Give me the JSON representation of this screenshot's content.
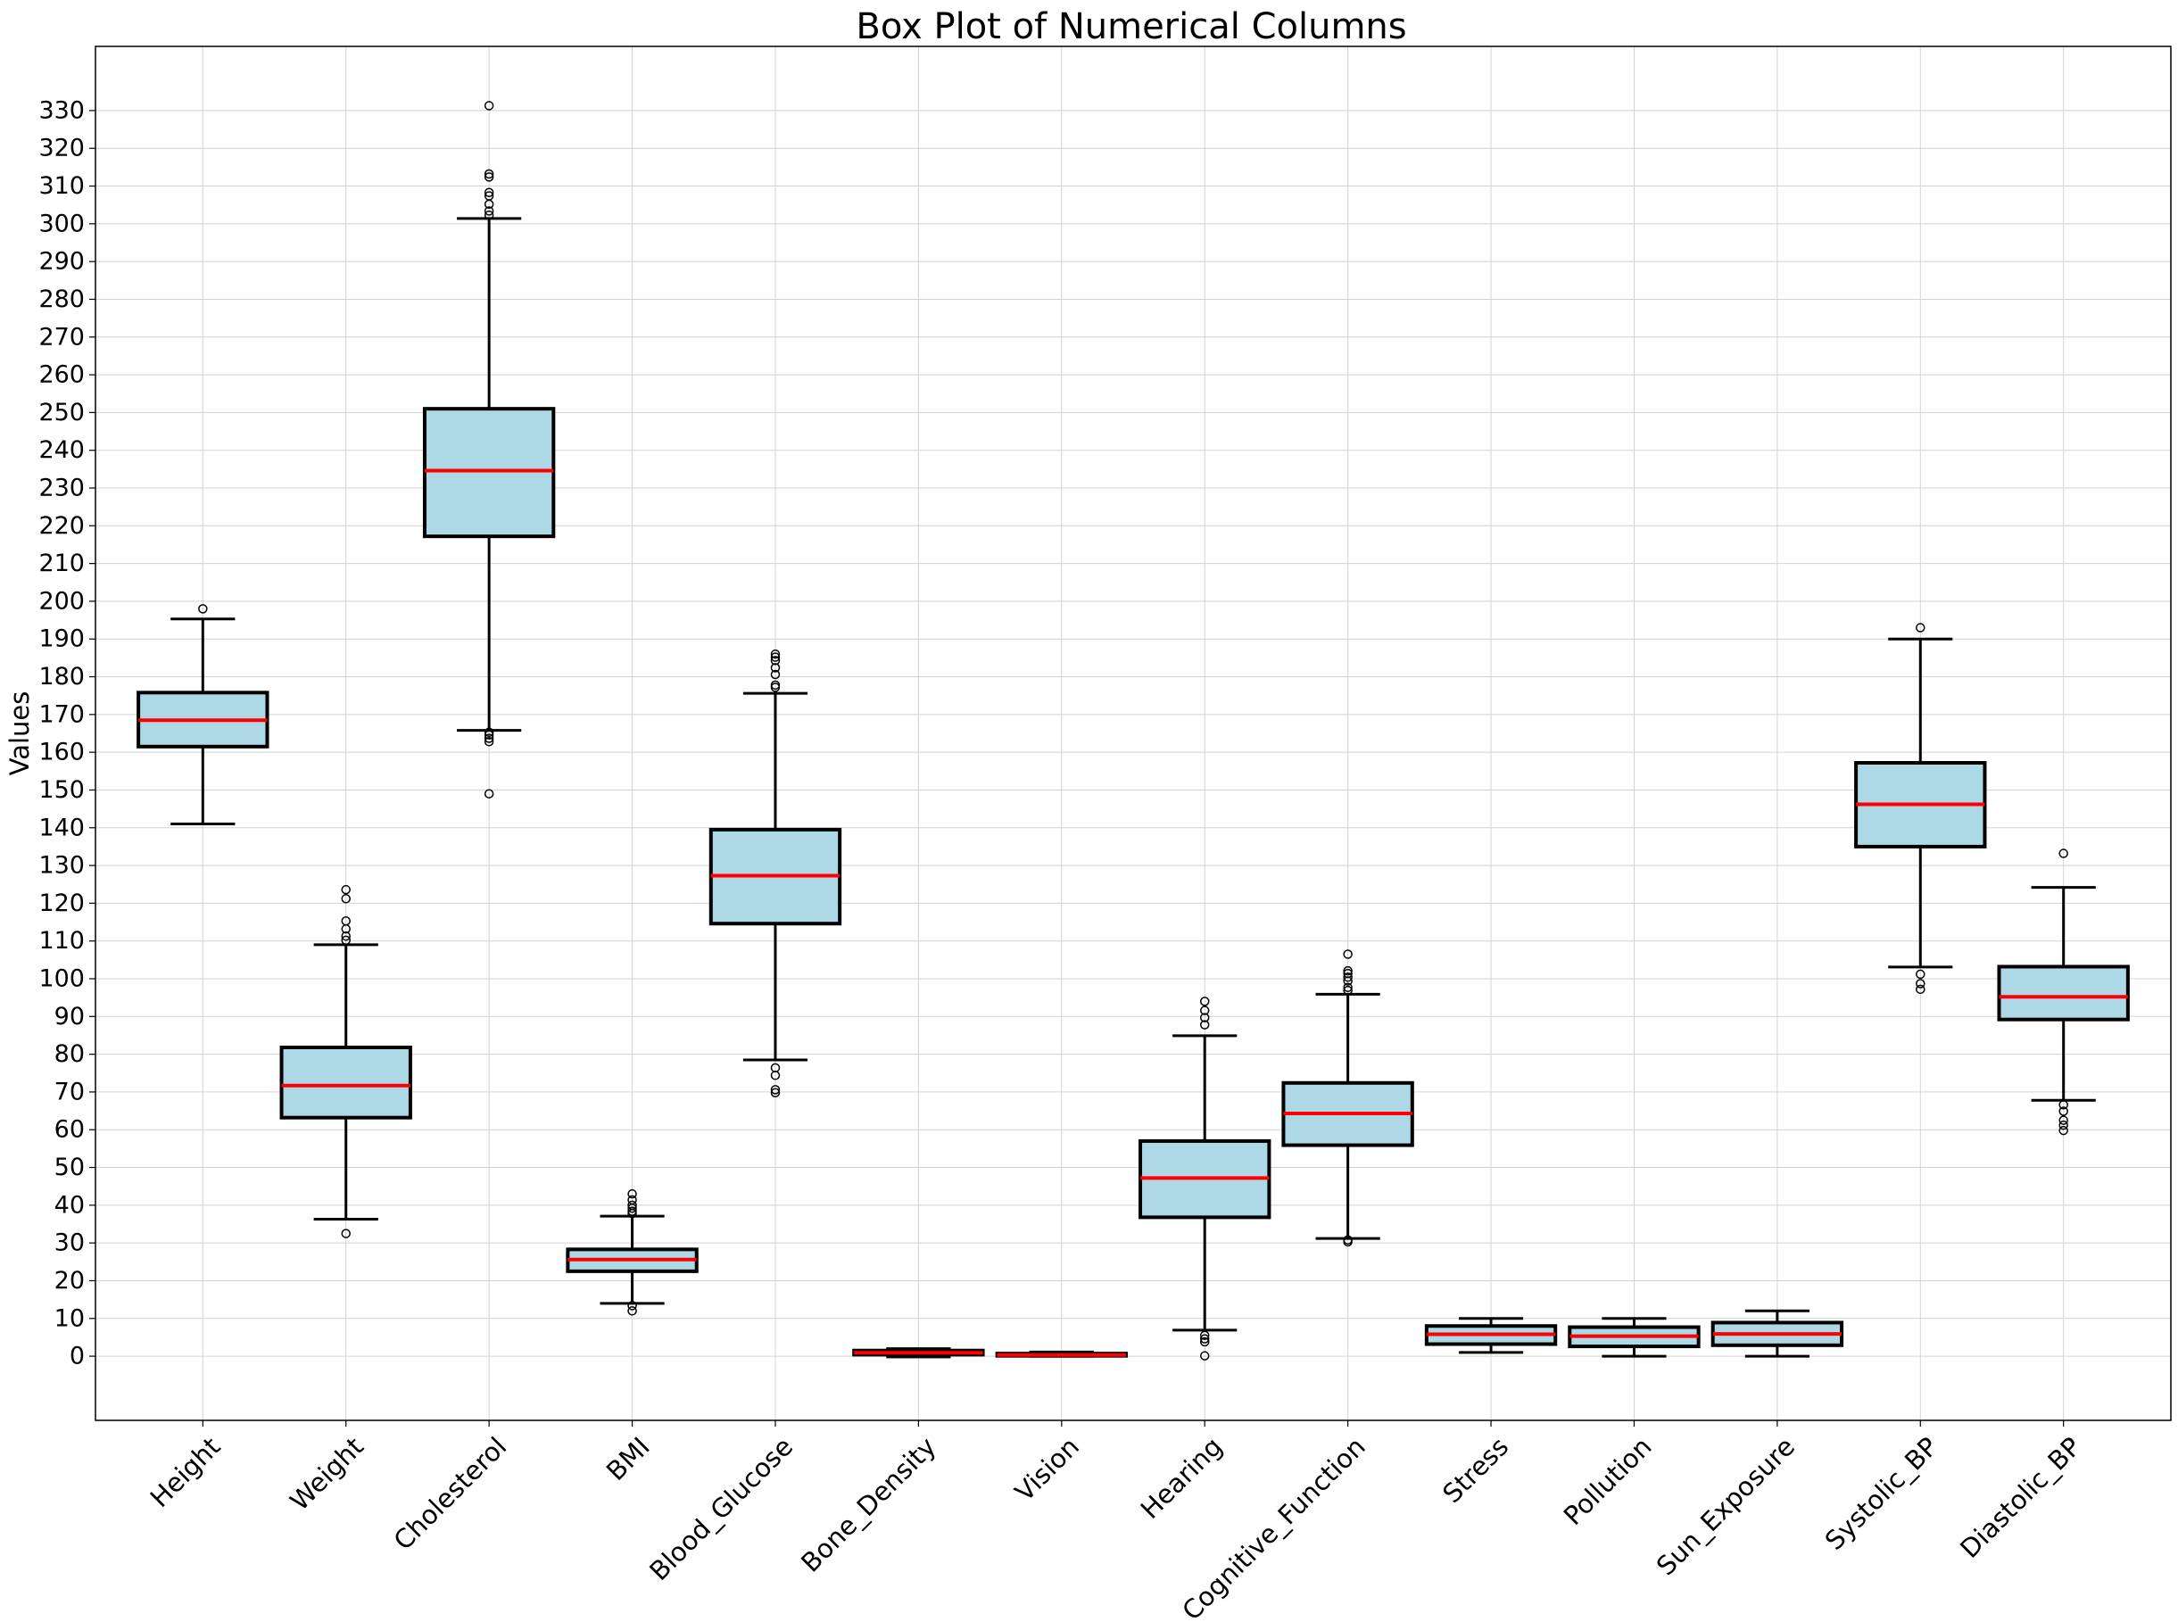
{
  "chart_data": {
    "type": "box",
    "title": "Box Plot of Numerical Columns",
    "xlabel": "",
    "ylabel": "Values",
    "ylim": [
      -17,
      347
    ],
    "yticks": [
      0,
      10,
      20,
      30,
      40,
      50,
      60,
      70,
      80,
      90,
      100,
      110,
      120,
      130,
      140,
      150,
      160,
      170,
      180,
      190,
      200,
      210,
      220,
      230,
      240,
      250,
      260,
      270,
      280,
      290,
      300,
      310,
      320,
      330
    ],
    "grid": true,
    "colors": {
      "box_fill": "#add8e6",
      "median": "#ff0000",
      "edge": "#000000",
      "grid": "#d3d3d3"
    },
    "boxes": [
      {
        "category": "Height",
        "whisker_low": 141,
        "q1": 161.5,
        "median": 168.5,
        "q3": 175.8,
        "whisker_high": 195.3,
        "outliers": [
          198
        ]
      },
      {
        "category": "Weight",
        "whisker_low": 36.3,
        "q1": 63.2,
        "median": 71.7,
        "q3": 81.8,
        "whisker_high": 109,
        "outliers": [
          32.5,
          110.2,
          111.3,
          113.2,
          115.3,
          121.2,
          123.6
        ]
      },
      {
        "category": "Cholesterol",
        "whisker_low": 165.8,
        "q1": 217.2,
        "median": 234.6,
        "q3": 251,
        "whisker_high": 301.4,
        "outliers": [
          149,
          162.8,
          163.7,
          164.6,
          165.3,
          302.3,
          303.4,
          305.2,
          307.4,
          308.3,
          312.4,
          313.2,
          331.3
        ]
      },
      {
        "category": "BMI",
        "whisker_low": 14,
        "q1": 22.5,
        "median": 25.6,
        "q3": 28.3,
        "whisker_high": 37.1,
        "outliers": [
          12,
          13.4,
          37.8,
          38.4,
          39.2,
          40,
          41.4,
          43
        ]
      },
      {
        "category": "Blood_Glucose",
        "whisker_low": 78.5,
        "q1": 114.6,
        "median": 127.3,
        "q3": 139.5,
        "whisker_high": 175.6,
        "outliers": [
          69.8,
          70.6,
          74.4,
          76.4,
          177.2,
          177.8,
          180.6,
          182.4,
          184.3,
          185.2,
          186
        ]
      },
      {
        "category": "Bone_Density",
        "whisker_low": -0.2,
        "q1": 0.4,
        "median": 0.9,
        "q3": 1.5,
        "whisker_high": 2,
        "outliers": []
      },
      {
        "category": "Vision",
        "whisker_low": 0,
        "q1": 0.1,
        "median": 0.3,
        "q3": 0.7,
        "whisker_high": 1.1,
        "outliers": []
      },
      {
        "category": "Hearing",
        "whisker_low": 6.9,
        "q1": 36.8,
        "median": 47.2,
        "q3": 57,
        "whisker_high": 84.9,
        "outliers": [
          0.1,
          3.8,
          4.6,
          5.5,
          87.8,
          89.7,
          91.6,
          94
        ]
      },
      {
        "category": "Cognitive_Function",
        "whisker_low": 31.2,
        "q1": 55.9,
        "median": 64.3,
        "q3": 72.4,
        "whisker_high": 95.9,
        "outliers": [
          30.3,
          30.8,
          96.9,
          97.7,
          99.4,
          100.4,
          101.4,
          102.1,
          106.5
        ]
      },
      {
        "category": "Stress",
        "whisker_low": 1,
        "q1": 3.2,
        "median": 5.8,
        "q3": 8,
        "whisker_high": 10,
        "outliers": []
      },
      {
        "category": "Pollution",
        "whisker_low": 0,
        "q1": 2.6,
        "median": 5.3,
        "q3": 7.7,
        "whisker_high": 10,
        "outliers": []
      },
      {
        "category": "Sun_Exposure",
        "whisker_low": 0,
        "q1": 2.9,
        "median": 5.9,
        "q3": 8.9,
        "whisker_high": 12,
        "outliers": []
      },
      {
        "category": "Systolic_BP",
        "whisker_low": 103.1,
        "q1": 135,
        "median": 146.2,
        "q3": 157.2,
        "whisker_high": 190,
        "outliers": [
          97.2,
          98.7,
          101.2,
          193
        ]
      },
      {
        "category": "Diastolic_BP",
        "whisker_low": 67.8,
        "q1": 89.2,
        "median": 95.2,
        "q3": 103.2,
        "whisker_high": 124.2,
        "outliers": [
          59.8,
          61.2,
          62.5,
          64.9,
          66.6,
          133.2
        ]
      }
    ]
  }
}
